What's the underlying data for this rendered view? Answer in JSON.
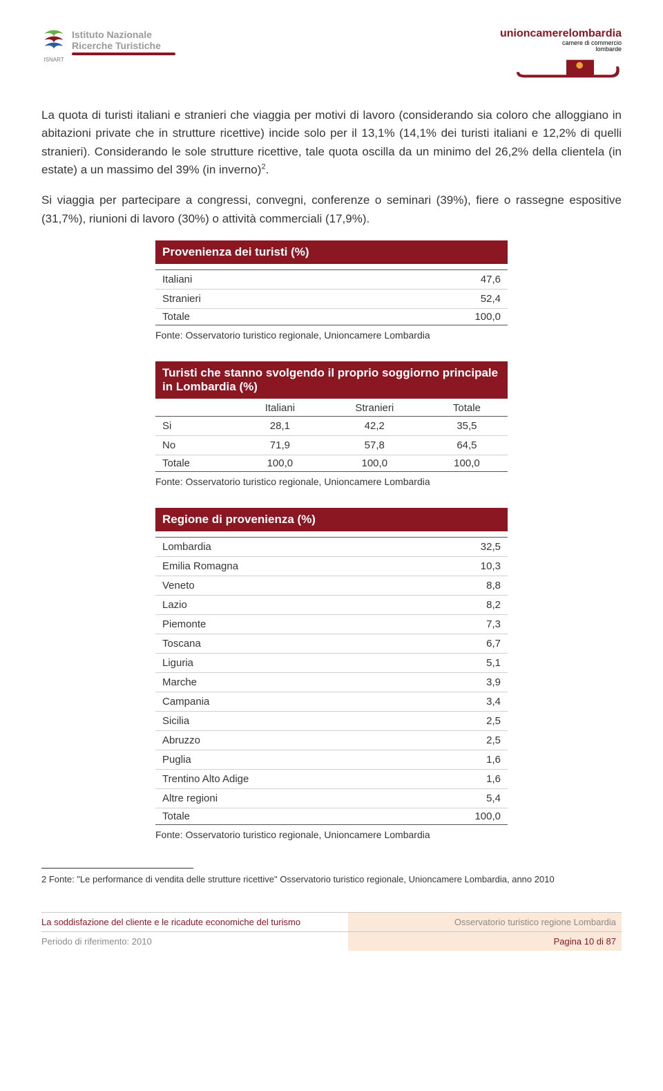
{
  "header": {
    "left_line1": "Istituto Nazionale",
    "left_line2": "Ricerche Turistiche",
    "left_small": "ISNART",
    "right_title": "unioncamerelombardia",
    "right_sub1": "camere di commercio",
    "right_sub2": "lombarde"
  },
  "paragraphs": {
    "p1": "La quota di turisti italiani e stranieri che viaggia per motivi di lavoro (considerando sia coloro che alloggiano in abitazioni private che in strutture ricettive) incide solo per il 13,1% (14,1% dei turisti italiani e 12,2% di quelli stranieri). Considerando le sole strutture ricettive, tale quota oscilla da un minimo del 26,2% della clientela (in estate) a un massimo del 39% (in inverno)",
    "p1_sup": "2",
    "p1_tail": ".",
    "p2": "Si viaggia per partecipare a congressi, convegni, conferenze o seminari (39%), fiere o rassegne espositive (31,7%), riunioni di lavoro (30%) o attività commerciali (17,9%)."
  },
  "table1": {
    "title": "Provenienza dei turisti (%)",
    "rows": [
      {
        "label": "Italiani",
        "val": "47,6"
      },
      {
        "label": "Stranieri",
        "val": "52,4"
      }
    ],
    "total": {
      "label": "Totale",
      "val": "100,0"
    }
  },
  "table2": {
    "title": "Turisti che stanno svolgendo il proprio soggiorno principale in Lombardia (%)",
    "cols": [
      "Italiani",
      "Stranieri",
      "Totale"
    ],
    "rows": [
      {
        "label": "Si",
        "c": [
          "28,1",
          "42,2",
          "35,5"
        ]
      },
      {
        "label": "No",
        "c": [
          "71,9",
          "57,8",
          "64,5"
        ]
      }
    ],
    "total": {
      "label": "Totale",
      "c": [
        "100,0",
        "100,0",
        "100,0"
      ]
    }
  },
  "table3": {
    "title": "Regione di provenienza (%)",
    "rows": [
      {
        "label": "Lombardia",
        "val": "32,5"
      },
      {
        "label": "Emilia Romagna",
        "val": "10,3"
      },
      {
        "label": "Veneto",
        "val": "8,8"
      },
      {
        "label": "Lazio",
        "val": "8,2"
      },
      {
        "label": "Piemonte",
        "val": "7,3"
      },
      {
        "label": "Toscana",
        "val": "6,7"
      },
      {
        "label": "Liguria",
        "val": "5,1"
      },
      {
        "label": "Marche",
        "val": "3,9"
      },
      {
        "label": "Campania",
        "val": "3,4"
      },
      {
        "label": "Sicilia",
        "val": "2,5"
      },
      {
        "label": "Abruzzo",
        "val": "2,5"
      },
      {
        "label": "Puglia",
        "val": "1,6"
      },
      {
        "label": "Trentino Alto Adige",
        "val": "1,6"
      },
      {
        "label": "Altre regioni",
        "val": "5,4"
      }
    ],
    "total": {
      "label": "Totale",
      "val": "100,0"
    }
  },
  "source": "Fonte: Osservatorio turistico regionale, Unioncamere Lombardia",
  "footnote": "2 Fonte: \"Le performance di vendita delle strutture ricettive\" Osservatorio turistico regionale, Unioncamere Lombardia, anno 2010",
  "footer": {
    "left1": "La soddisfazione del cliente e le ricadute economiche del turismo",
    "right1": "Osservatorio turistico regione Lombardia",
    "left2": "Periodo di riferimento: 2010",
    "right2": "Pagina 10 di 87"
  },
  "colors": {
    "brand": "#8a1722",
    "footer_bg": "#fce8d8"
  }
}
